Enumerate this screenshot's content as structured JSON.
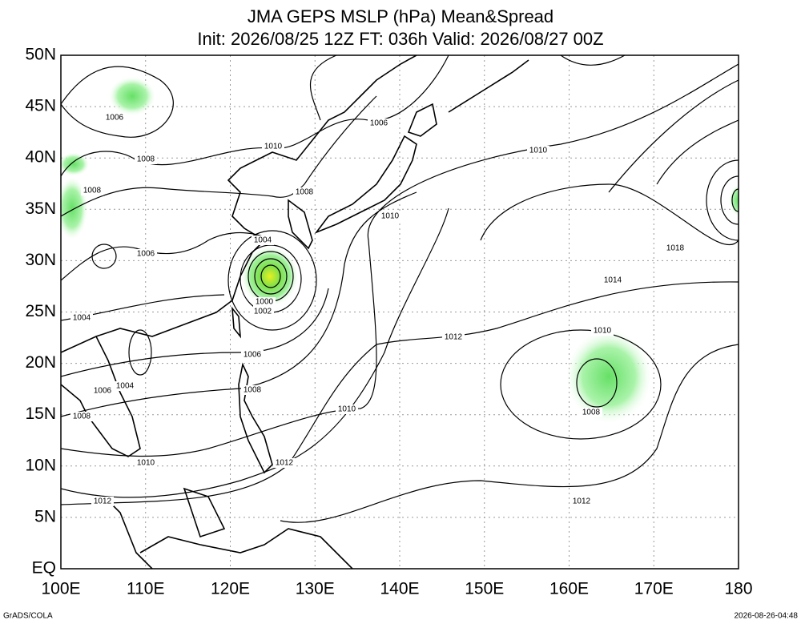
{
  "header": {
    "title": "JMA GEPS MSLP (hPa) Mean&Spread",
    "subtitle": "Init: 2026/08/25 12Z  FT: 036h  Valid: 2026/08/27 00Z"
  },
  "axes": {
    "lat_labels": [
      "50N",
      "45N",
      "40N",
      "35N",
      "30N",
      "25N",
      "20N",
      "15N",
      "10N",
      "5N",
      "EQ"
    ],
    "lon_labels": [
      "100E",
      "110E",
      "120E",
      "130E",
      "140E",
      "150E",
      "160E",
      "170E",
      "180"
    ]
  },
  "contour_labels": [
    "1006",
    "1008",
    "1010",
    "1006",
    "1008",
    "1010",
    "1010",
    "1008",
    "1006",
    "1004",
    "1018",
    "1014",
    "1000",
    "1002",
    "1004",
    "1012",
    "1010",
    "1006",
    "1004",
    "1006",
    "1008",
    "1008",
    "1010",
    "1008",
    "1010",
    "1012",
    "1012",
    "1012"
  ],
  "footer": {
    "left": "GrADS/COLA",
    "right": "2026-08-26-04:48"
  }
}
